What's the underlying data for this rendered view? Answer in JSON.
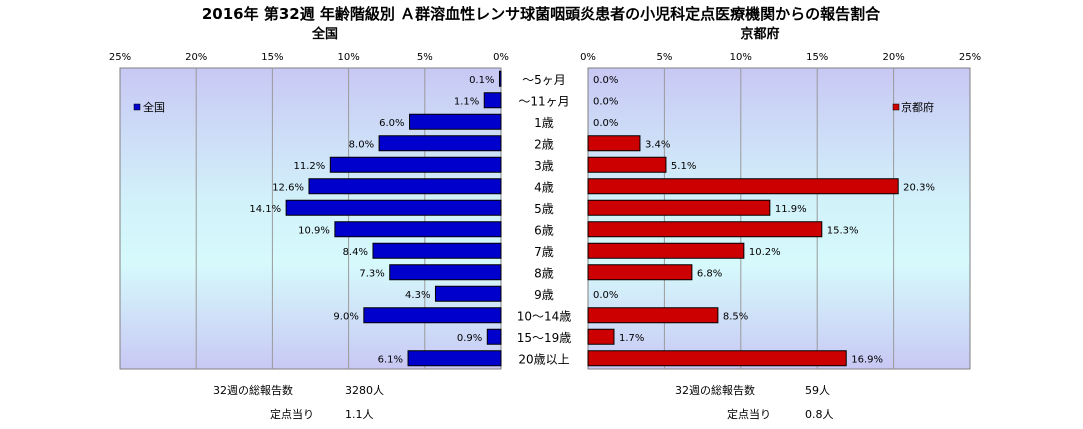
{
  "chart_data": {
    "type": "bar",
    "title": "2016年 第32週 年齢階級別 Ａ群溶血性レンサ球菌咽頭炎患者の小児科定点医療機関からの報告割合",
    "categories": [
      "～5ヶ月",
      "～11ヶ月",
      "1歳",
      "2歳",
      "3歳",
      "4歳",
      "5歳",
      "6歳",
      "7歳",
      "8歳",
      "9歳",
      "10～14歳",
      "15～19歳",
      "20歳以上"
    ],
    "xlim": [
      0,
      25
    ],
    "xticks": [
      "0%",
      "5%",
      "10%",
      "15%",
      "20%",
      "25%"
    ],
    "series": [
      {
        "name": "全国",
        "panel_title": "全国",
        "color": "#0000cc",
        "values": [
          0.1,
          1.1,
          6.0,
          8.0,
          11.2,
          12.6,
          14.1,
          10.9,
          8.4,
          7.3,
          4.3,
          9.0,
          0.9,
          6.1
        ],
        "labels": [
          "0.1%",
          "1.1%",
          "6.0%",
          "8.0%",
          "11.2%",
          "12.6%",
          "14.1%",
          "10.9%",
          "8.4%",
          "7.3%",
          "4.3%",
          "9.0%",
          "0.9%",
          "6.1%"
        ]
      },
      {
        "name": "京都府",
        "panel_title": "京都府",
        "color": "#cc0000",
        "values": [
          0.0,
          0.0,
          0.0,
          3.4,
          5.1,
          20.3,
          11.9,
          15.3,
          10.2,
          6.8,
          0.0,
          8.5,
          1.7,
          16.9
        ],
        "labels": [
          "0.0%",
          "0.0%",
          "0.0%",
          "3.4%",
          "5.1%",
          "20.3%",
          "11.9%",
          "15.3%",
          "10.2%",
          "6.8%",
          "0.0%",
          "8.5%",
          "1.7%",
          "16.9%"
        ]
      }
    ],
    "grid": true,
    "legend": [
      "left-top",
      "right-top"
    ]
  },
  "stats": {
    "left": {
      "total_label": "32週の総報告数",
      "total_value": "3280人",
      "per_label": "定点当り",
      "per_value": "1.1人"
    },
    "right": {
      "total_label": "32週の総報告数",
      "total_value": "59人",
      "per_label": "定点当り",
      "per_value": "0.8人"
    }
  }
}
